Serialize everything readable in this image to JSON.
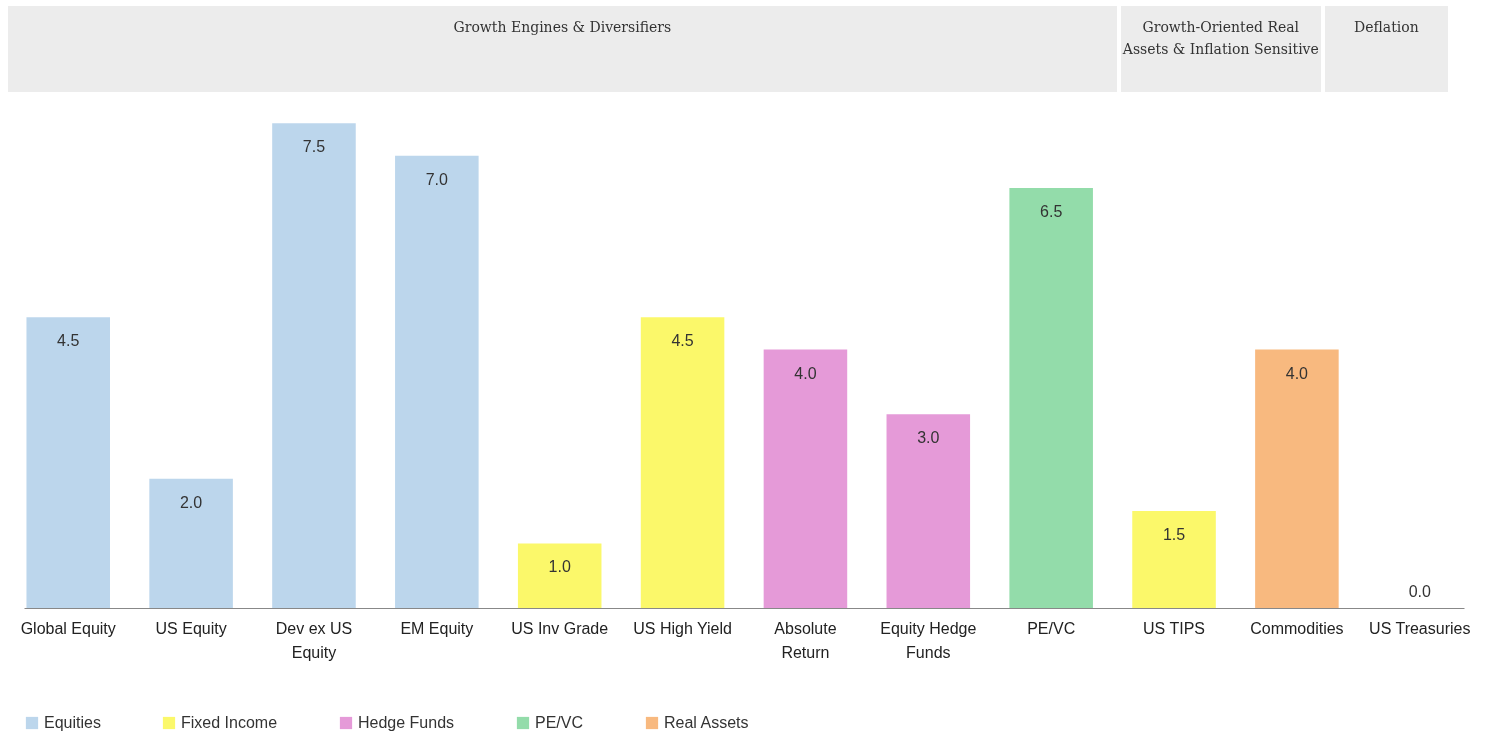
{
  "chart_data": {
    "type": "bar",
    "categories": [
      "Global Equity",
      "US Equity",
      "Dev ex US Equity",
      "EM Equity",
      "US Inv Grade",
      "US High Yield",
      "Absolute Return",
      "Equity Hedge Funds",
      "PE/VC",
      "US TIPS",
      "Commodities",
      "US Treasuries"
    ],
    "series": [
      {
        "name": "Equities",
        "color": "#bcd6ec",
        "values": [
          4.5,
          2,
          7.5,
          7,
          null,
          null,
          null,
          null,
          null,
          null,
          null,
          null
        ],
        "value_labels": [
          "4.5",
          "2.0",
          "7.5",
          "7.0",
          null,
          null,
          null,
          null,
          null,
          null,
          null,
          null
        ]
      },
      {
        "name": "Fixed Income",
        "color": "#fbf86a",
        "values": [
          null,
          null,
          null,
          null,
          1,
          4.5,
          null,
          null,
          null,
          1.5,
          null,
          0
        ],
        "value_labels": [
          null,
          null,
          null,
          null,
          "1.0",
          "4.5",
          null,
          null,
          null,
          "1.5",
          null,
          "0.0"
        ]
      },
      {
        "name": "Hedge Funds",
        "color": "#e59ad8",
        "values": [
          null,
          null,
          null,
          null,
          null,
          null,
          4,
          3,
          null,
          null,
          null,
          null
        ],
        "value_labels": [
          null,
          null,
          null,
          null,
          null,
          null,
          "4.0",
          "3.0",
          null,
          null,
          null,
          null
        ]
      },
      {
        "name": "PE/VC",
        "color": "#93dcaa",
        "values": [
          null,
          null,
          null,
          null,
          null,
          null,
          null,
          null,
          6.5,
          null,
          null,
          null
        ],
        "value_labels": [
          null,
          null,
          null,
          null,
          null,
          null,
          null,
          null,
          "6.5",
          null,
          null,
          null
        ]
      },
      {
        "name": "Real Assets",
        "color": "#f8b97f",
        "values": [
          null,
          null,
          null,
          null,
          null,
          null,
          null,
          null,
          null,
          null,
          4,
          null
        ],
        "value_labels": [
          null,
          null,
          null,
          null,
          null,
          null,
          null,
          null,
          null,
          null,
          "4.0",
          null
        ]
      }
    ],
    "annotations": [
      "Growth Engines & Diversifiers",
      "Growth-Oriented Real Assets & Inflation Sensitive",
      "Deflation"
    ],
    "grid": false,
    "legend": "bottom"
  }
}
